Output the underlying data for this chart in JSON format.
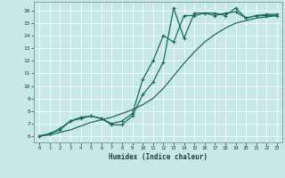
{
  "xlabel": "Humidex (Indice chaleur)",
  "bg_color": "#c8e8e8",
  "line_color": "#1a6b5a",
  "grid_color": "#ffffff",
  "xlim": [
    -0.5,
    23.5
  ],
  "ylim": [
    5.5,
    16.7
  ],
  "xticks": [
    0,
    1,
    2,
    3,
    4,
    5,
    6,
    7,
    8,
    9,
    10,
    11,
    12,
    13,
    14,
    15,
    16,
    17,
    18,
    19,
    20,
    21,
    22,
    23
  ],
  "yticks": [
    6,
    7,
    8,
    9,
    10,
    11,
    12,
    13,
    14,
    15,
    16
  ],
  "line1_x": [
    0,
    1,
    2,
    3,
    4,
    5,
    6,
    7,
    8,
    9,
    10,
    11,
    12,
    13,
    14,
    15,
    16,
    17,
    18,
    19,
    20,
    21,
    22,
    23
  ],
  "line1_y": [
    6.0,
    6.2,
    6.5,
    7.2,
    7.4,
    7.6,
    7.4,
    6.9,
    6.9,
    7.6,
    9.3,
    10.3,
    11.9,
    16.2,
    13.8,
    15.8,
    15.8,
    15.8,
    15.6,
    16.2,
    15.4,
    15.6,
    15.6,
    15.6
  ],
  "line2_x": [
    0,
    1,
    2,
    3,
    4,
    5,
    6,
    7,
    8,
    9,
    10,
    11,
    12,
    13,
    14,
    15,
    16,
    17,
    18,
    19,
    20,
    21,
    22,
    23
  ],
  "line2_y": [
    6.0,
    6.2,
    6.6,
    7.2,
    7.5,
    7.6,
    7.4,
    7.0,
    7.2,
    7.8,
    10.5,
    12.0,
    14.0,
    13.5,
    15.6,
    15.6,
    15.8,
    15.6,
    15.8,
    15.9,
    15.4,
    15.6,
    15.7,
    15.7
  ],
  "line3_x": [
    0,
    1,
    2,
    3,
    4,
    5,
    6,
    7,
    8,
    9,
    10,
    11,
    12,
    13,
    14,
    15,
    16,
    17,
    18,
    19,
    20,
    21,
    22,
    23
  ],
  "line3_y": [
    6.0,
    6.1,
    6.3,
    6.5,
    6.8,
    7.1,
    7.3,
    7.5,
    7.8,
    8.1,
    8.5,
    9.0,
    9.8,
    10.8,
    11.8,
    12.7,
    13.5,
    14.1,
    14.6,
    15.0,
    15.2,
    15.4,
    15.5,
    15.6
  ],
  "marker_size": 2.5,
  "linewidth": 0.9
}
